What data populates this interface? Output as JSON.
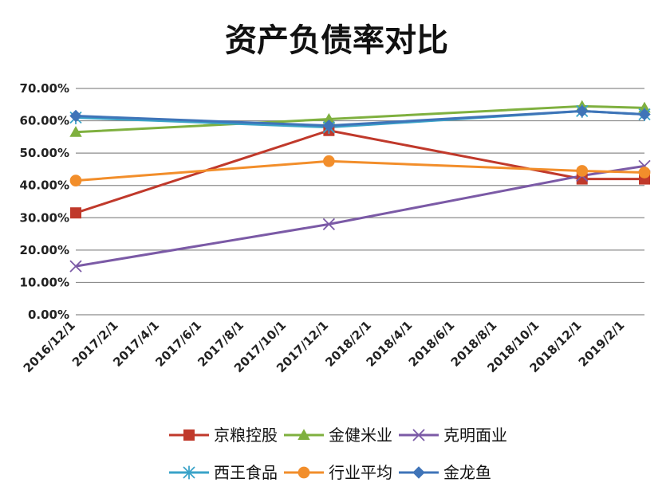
{
  "chart_data": {
    "type": "line",
    "title": "资产负债率对比",
    "xlabel": "",
    "ylabel": "",
    "x_ticks": [
      "2016/12/1",
      "2017/2/1",
      "2017/4/1",
      "2017/6/1",
      "2017/8/1",
      "2017/10/1",
      "2017/12/1",
      "2018/2/1",
      "2018/4/1",
      "2018/6/1",
      "2018/8/1",
      "2018/10/1",
      "2018/12/1",
      "2019/2/1"
    ],
    "y_ticks": [
      "0.00%",
      "10.00%",
      "20.00%",
      "30.00%",
      "40.00%",
      "50.00%",
      "60.00%",
      "70.00%"
    ],
    "ylim": [
      0,
      70
    ],
    "grid": "horizontal",
    "legend_position": "bottom",
    "series": [
      {
        "name": "京粮控股",
        "color": "#c0392b",
        "marker": "square",
        "points": [
          [
            "2016/12/1",
            31.5
          ],
          [
            "2017/12/1",
            57.0
          ],
          [
            "2018/12/1",
            42.0
          ],
          [
            "2019/3/1",
            42.0
          ]
        ]
      },
      {
        "name": "金健米业",
        "color": "#7fb03f",
        "marker": "triangle",
        "points": [
          [
            "2016/12/1",
            56.5
          ],
          [
            "2017/12/1",
            60.5
          ],
          [
            "2018/12/1",
            64.5
          ],
          [
            "2019/3/1",
            64.0
          ]
        ]
      },
      {
        "name": "克明面业",
        "color": "#7b5aa6",
        "marker": "x",
        "points": [
          [
            "2016/12/1",
            15.0
          ],
          [
            "2017/12/1",
            28.0
          ],
          [
            "2018/12/1",
            43.0
          ],
          [
            "2019/3/1",
            46.0
          ]
        ]
      },
      {
        "name": "西王食品",
        "color": "#3aa3c8",
        "marker": "star",
        "points": [
          [
            "2016/12/1",
            61.0
          ],
          [
            "2017/12/1",
            58.0
          ],
          [
            "2018/12/1",
            63.0
          ],
          [
            "2019/3/1",
            62.0
          ]
        ]
      },
      {
        "name": "行业平均",
        "color": "#f28e2b",
        "marker": "circle",
        "points": [
          [
            "2016/12/1",
            41.5
          ],
          [
            "2017/12/1",
            47.5
          ],
          [
            "2018/12/1",
            44.5
          ],
          [
            "2019/3/1",
            44.0
          ]
        ]
      },
      {
        "name": "金龙鱼",
        "color": "#3f74b8",
        "marker": "diamond",
        "points": [
          [
            "2016/12/1",
            61.5
          ],
          [
            "2017/12/1",
            58.5
          ],
          [
            "2018/12/1",
            63.0
          ],
          [
            "2019/3/1",
            62.0
          ]
        ]
      }
    ]
  }
}
